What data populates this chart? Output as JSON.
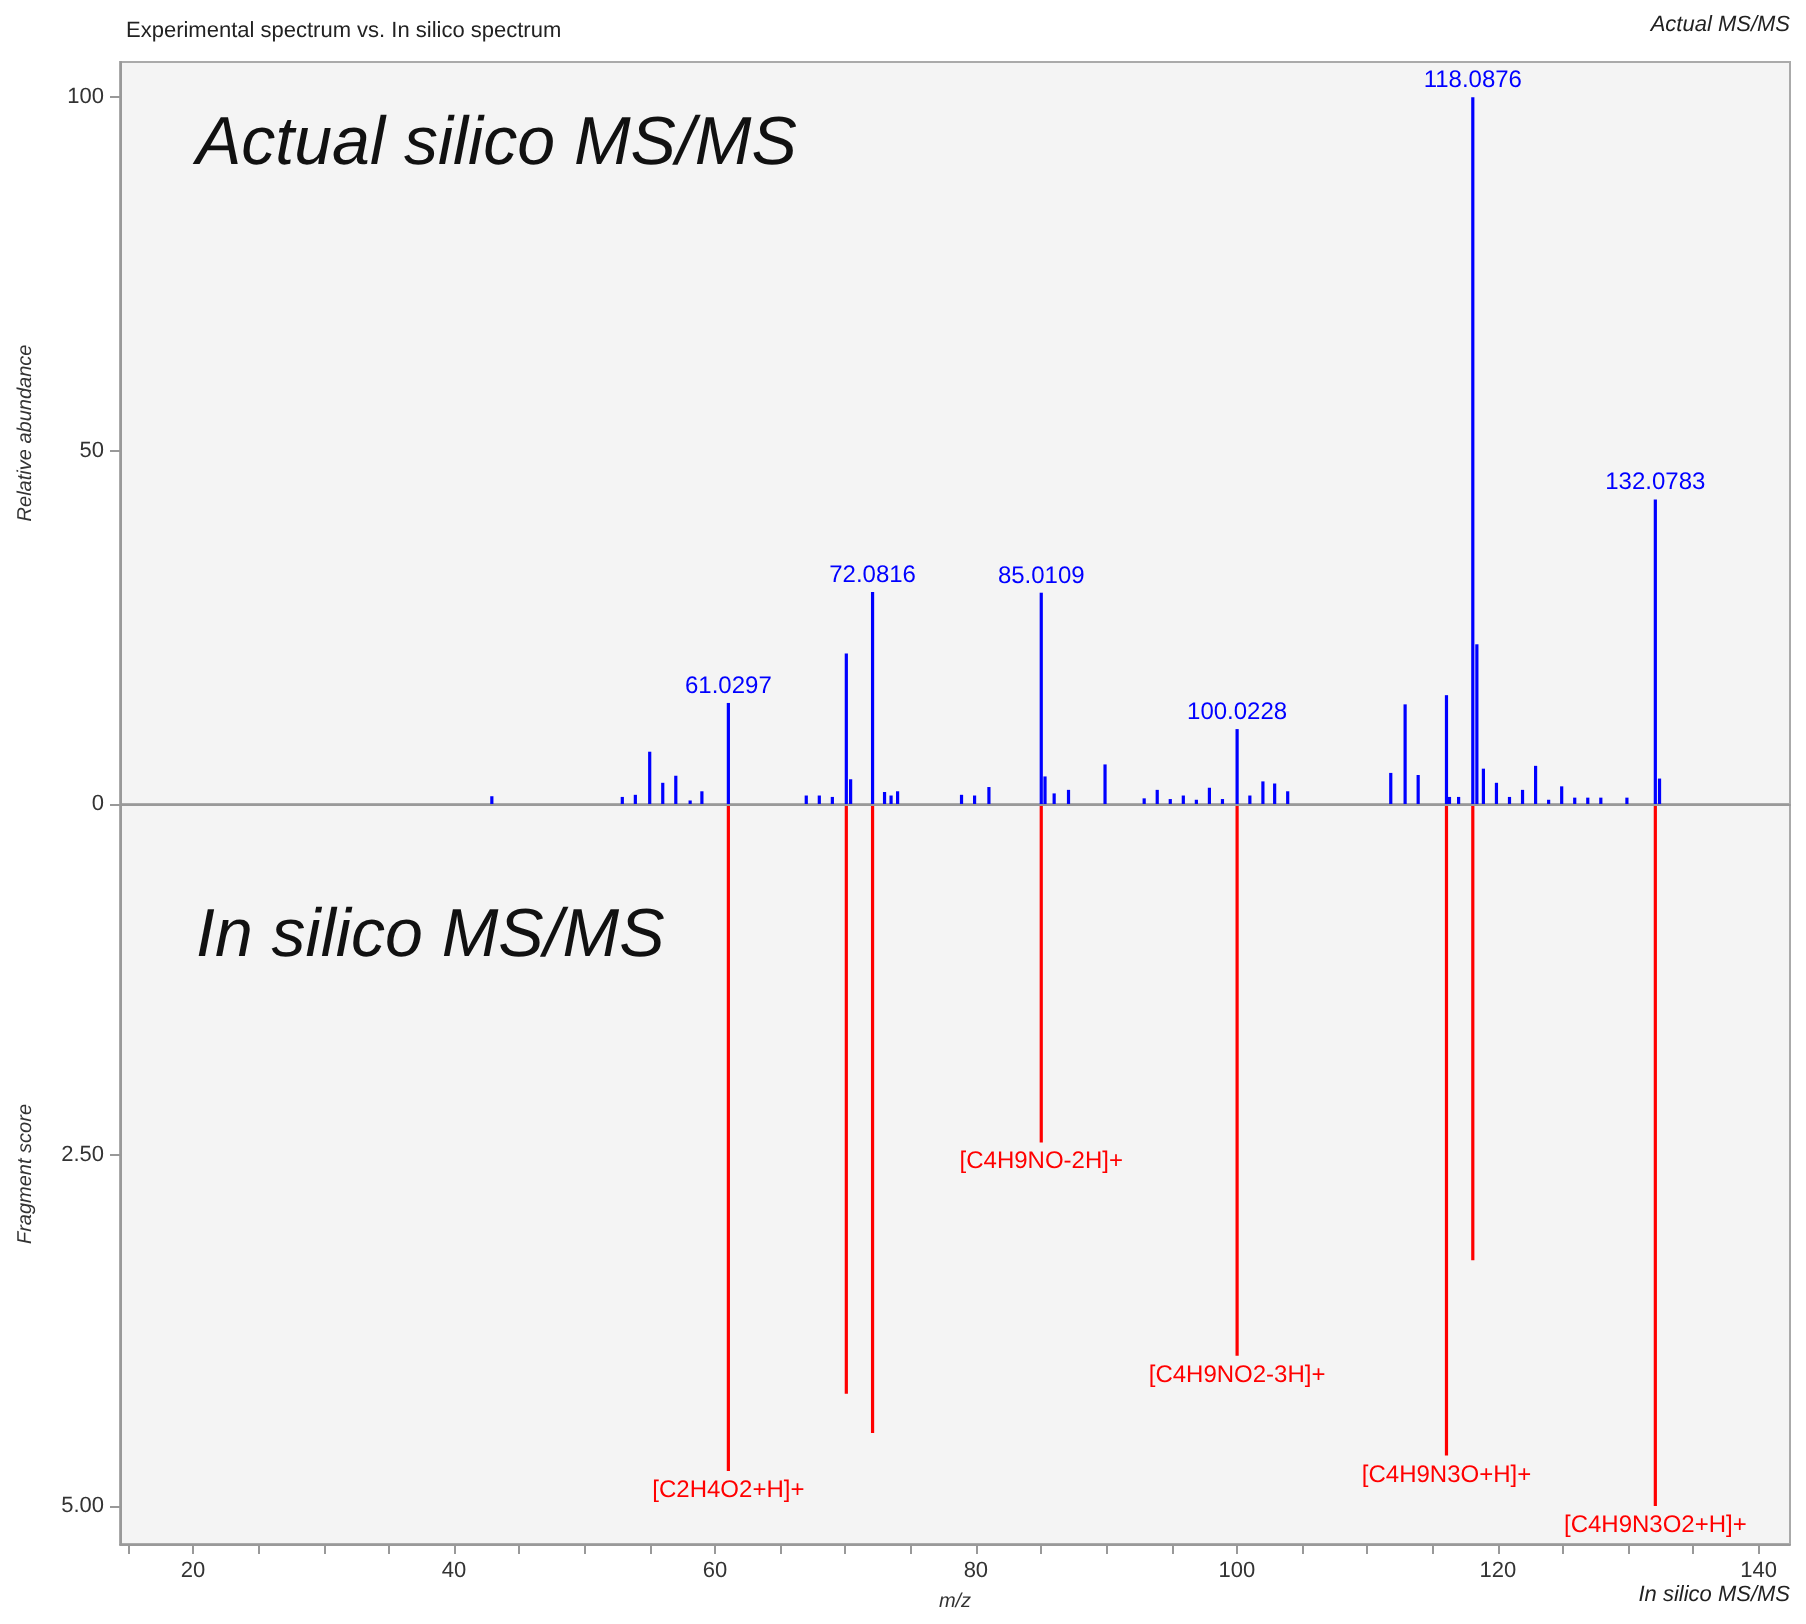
{
  "chart_data": [
    {
      "type": "bar",
      "title": "Experimental spectrum vs. In silico spectrum",
      "ylabel": "Relative abundance",
      "color": "#0000ff",
      "tick_labels": "y",
      "x": [
        42.9,
        52.9,
        53.9,
        55.0,
        56.0,
        57.0,
        58.1,
        59.0,
        61.0297,
        67.0,
        68.0,
        69.0,
        70.07,
        70.4,
        72.0816,
        73.0,
        73.5,
        74.0,
        78.9,
        79.9,
        81.0,
        85.0109,
        85.3,
        86.0,
        87.1,
        89.9,
        92.9,
        93.9,
        94.9,
        95.9,
        96.9,
        97.9,
        98.9,
        100.0228,
        101.0,
        102.0,
        102.9,
        103.9,
        111.8,
        112.9,
        113.9,
        116.07,
        116.3,
        117.0,
        118.0876,
        118.4,
        118.9,
        119.9,
        120.9,
        121.9,
        122.9,
        123.9,
        124.9,
        125.9,
        126.9,
        127.9,
        129.9,
        132.0783,
        132.4
      ],
      "values": [
        1.1,
        1.0,
        1.3,
        7.4,
        3.0,
        4.0,
        0.5,
        1.8,
        14.3,
        1.2,
        1.2,
        1.0,
        21.3,
        3.5,
        30.0,
        1.7,
        1.2,
        1.8,
        1.3,
        1.2,
        2.4,
        29.9,
        3.9,
        1.5,
        2.0,
        5.6,
        0.8,
        2.0,
        0.7,
        1.2,
        0.6,
        2.3,
        0.7,
        10.6,
        1.2,
        3.2,
        2.9,
        1.8,
        4.4,
        14.1,
        4.1,
        15.4,
        1.0,
        1.0,
        100,
        22.6,
        5.0,
        3.0,
        1.0,
        2.0,
        5.4,
        0.6,
        2.5,
        0.9,
        0.9,
        0.9,
        0.9,
        43.1,
        3.6
      ],
      "xlim": [
        14.4,
        142.4
      ],
      "ylim": [
        0,
        105
      ],
      "yticks": [
        0,
        50,
        100
      ],
      "annotations": [
        "Actual MS/MS",
        "Actual silico MS/MS",
        {
          "text": "61.0297",
          "x": 61.0297,
          "y": 14.3
        },
        {
          "text": "72.0816",
          "x": 72.0816,
          "y": 30.0
        },
        {
          "text": "85.0109",
          "x": 85.0109,
          "y": 29.9
        },
        {
          "text": "100.0228",
          "x": 100.0228,
          "y": 10.6
        },
        {
          "text": "118.0876",
          "x": 118.0876,
          "y": 100
        },
        {
          "text": "132.0783",
          "x": 132.0783,
          "y": 43.1
        }
      ]
    },
    {
      "type": "bar",
      "xlabel": "m/z",
      "ylabel": "Fragment score",
      "color": "#ff0000",
      "x": [
        61.0297,
        70.07,
        72.0816,
        85.0109,
        100.0228,
        116.07,
        118.0876,
        132.0783
      ],
      "values": [
        4.75,
        4.2,
        4.48,
        2.41,
        3.93,
        4.64,
        3.25,
        5.0
      ],
      "xlim": [
        14.4,
        142.4
      ],
      "ylim": [
        5.27,
        0
      ],
      "xticks": [
        {
          "value": 15,
          "label": null
        },
        20,
        {
          "value": 25,
          "label": null
        },
        {
          "value": 30,
          "label": null
        },
        {
          "value": 35,
          "label": null
        },
        40,
        {
          "value": 45,
          "label": null
        },
        {
          "value": 50,
          "label": null
        },
        {
          "value": 55,
          "label": null
        },
        60,
        {
          "value": 65,
          "label": null
        },
        {
          "value": 70,
          "label": null
        },
        {
          "value": 75,
          "label": null
        },
        80,
        {
          "value": 85,
          "label": null
        },
        {
          "value": 90,
          "label": null
        },
        {
          "value": 95,
          "label": null
        },
        100,
        {
          "value": 105,
          "label": null
        },
        {
          "value": 110,
          "label": null
        },
        {
          "value": 115,
          "label": null
        },
        120,
        {
          "value": 125,
          "label": null
        },
        {
          "value": 130,
          "label": null
        },
        {
          "value": 135,
          "label": null
        },
        140
      ],
      "yticks": [
        {
          "value": 2.5,
          "label": "2.50"
        },
        {
          "value": 5,
          "label": "5.00"
        }
      ],
      "annotations": [
        "In silico MS/MS",
        "In silico MS/MS",
        {
          "text": "[C2H4O2+H]+",
          "x": 61.0297,
          "y": 4.75
        },
        {
          "text": "[C4H9NO-2H]+",
          "x": 85.0109,
          "y": 2.41
        },
        {
          "text": "[C4H9NO2-3H]+",
          "x": 100.0228,
          "y": 3.93
        },
        {
          "text": "[C4H9N3O+H]+",
          "x": 116.07,
          "y": 4.64
        },
        {
          "text": "[C4H9N3O2+H]+",
          "x": 132.0783,
          "y": 5.0
        }
      ]
    }
  ]
}
